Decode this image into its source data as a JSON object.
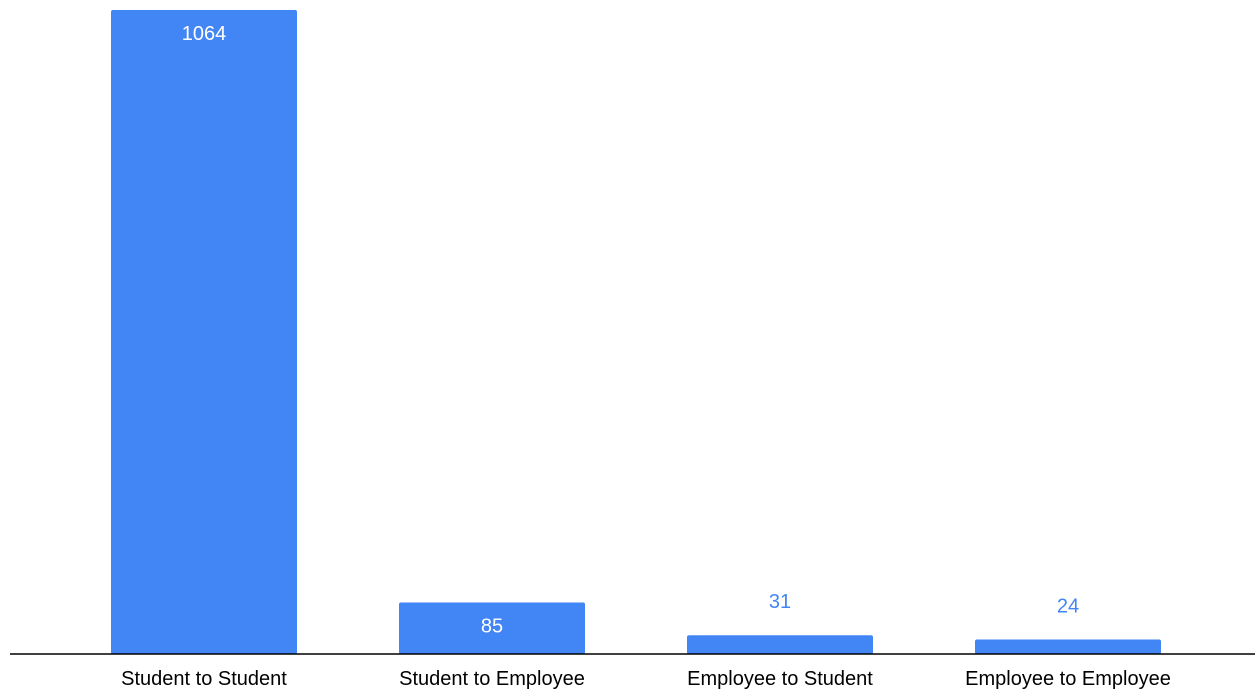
{
  "chart_data": {
    "type": "bar",
    "categories": [
      "Student to Student",
      "Student to Employee",
      "Employee to Student",
      "Employee to Employee"
    ],
    "values": [
      1064,
      85,
      31,
      24
    ],
    "data_labels": [
      "1064",
      "85",
      "31",
      "24"
    ],
    "title": "",
    "xlabel": "",
    "ylabel": "",
    "ylim": [
      0,
      1064
    ],
    "grid": false,
    "legend": "none",
    "colors": {
      "bar": "#4285f4",
      "label_inside": "#ffffff",
      "label_outside": "#4285f4",
      "axis": "#000000"
    }
  }
}
